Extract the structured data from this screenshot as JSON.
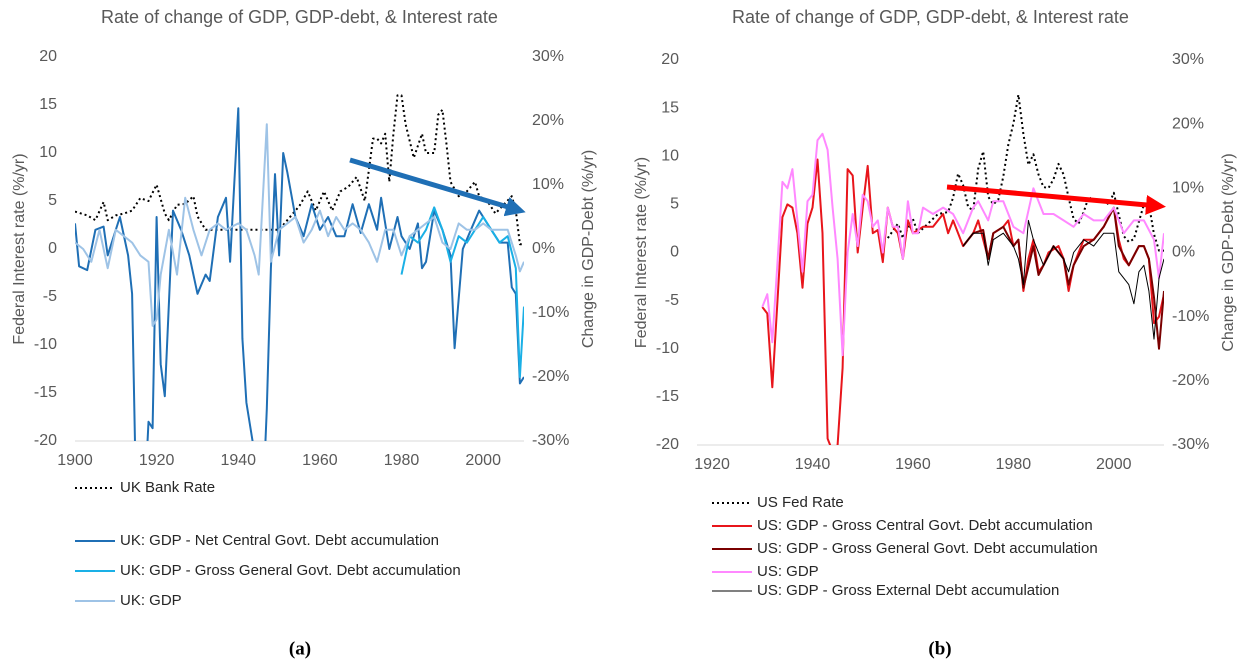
{
  "chart_data": [
    {
      "type": "line",
      "title": "Rate of change of GDP, GDP-debt, & Interest rate",
      "caption": "(a)",
      "y_label": "Federal Interest rate (%/yr)",
      "y2_label": "Change in GDP-Debt (%/yr)",
      "xlim": [
        1900,
        2010
      ],
      "xticks": [
        1900,
        1920,
        1940,
        1960,
        1980,
        2000
      ],
      "ylim": [
        -20,
        20
      ],
      "yticks": [
        20,
        15,
        10,
        5,
        0,
        -5,
        -10,
        -15,
        -20
      ],
      "y2lim": [
        -30,
        30
      ],
      "y2ticks": [
        {
          "value": 30,
          "label": "30%"
        },
        {
          "value": 20,
          "label": "20%"
        },
        {
          "value": 10,
          "label": "10%"
        },
        {
          "value": 0,
          "label": "0%"
        },
        {
          "value": -10,
          "label": "-10%"
        },
        {
          "value": -20,
          "label": "-20%"
        },
        {
          "value": -30,
          "label": "-30%"
        }
      ],
      "arrow_color": "#1f6fb5",
      "series": [
        {
          "name": "UK Bank Rate",
          "color": "#000000",
          "style": "dotted",
          "width": 2,
          "x": [
            1900,
            1903,
            1905,
            1907,
            1908,
            1910,
            1912,
            1914,
            1916,
            1918,
            1920,
            1922,
            1923,
            1925,
            1927,
            1929,
            1930,
            1932,
            1935,
            1939,
            1945,
            1950,
            1952,
            1955,
            1957,
            1959,
            1961,
            1963,
            1965,
            1967,
            1969,
            1971,
            1973,
            1974,
            1975,
            1976,
            1977,
            1978,
            1979,
            1980,
            1981,
            1983,
            1985,
            1986,
            1988,
            1989,
            1990,
            1991,
            1992,
            1994,
            1996,
            1998,
            1999,
            2001,
            2003,
            2005,
            2007,
            2008,
            2009,
            2010
          ],
          "values": [
            3.9,
            3.5,
            3,
            4.9,
            3,
            3.5,
            3.7,
            4,
            5.3,
            5,
            6.7,
            3.7,
            3,
            4.6,
            4.7,
            5.5,
            3.4,
            2,
            2,
            2,
            2,
            2,
            3,
            4.5,
            6,
            4,
            6,
            4,
            6,
            6.5,
            7.5,
            5,
            11.5,
            11.5,
            11,
            12,
            7,
            12,
            16,
            16,
            13,
            9.5,
            12,
            10,
            10,
            14,
            14.5,
            11,
            7,
            5.5,
            6,
            7,
            5.5,
            5,
            3.7,
            4.6,
            5.5,
            4,
            0.5,
            0.5
          ]
        },
        {
          "name": "UK: GDP - Net Central Govt. Debt accumulation",
          "color": "#1f6fb5",
          "style": "solid",
          "width": 2,
          "axis": "y2",
          "x": [
            1900,
            1901,
            1903,
            1905,
            1907,
            1908,
            1910,
            1911,
            1913,
            1914,
            1915,
            1917,
            1918,
            1919,
            1920,
            1921,
            1922,
            1924,
            1926,
            1928,
            1930,
            1932,
            1933,
            1935,
            1937,
            1938,
            1939,
            1940,
            1941,
            1942,
            1944,
            1946,
            1947,
            1948,
            1949,
            1950,
            1951,
            1952,
            1954,
            1956,
            1958,
            1960,
            1962,
            1964,
            1966,
            1968,
            1970,
            1972,
            1974,
            1975,
            1977,
            1979,
            1980,
            1982,
            1984,
            1985,
            1986,
            1988,
            1990,
            1992,
            1993,
            1995,
            1997,
            1999,
            2000,
            2002,
            2004,
            2006,
            2007,
            2008,
            2009,
            2010
          ],
          "values": [
            4,
            -2.7,
            -3.3,
            3,
            3.5,
            -1,
            3,
            5,
            -1,
            -7,
            -40,
            -40,
            -27,
            -28,
            5,
            -18,
            -23,
            6,
            3,
            -1,
            -7,
            -4,
            -5,
            5,
            8,
            -2,
            10,
            22,
            -14,
            -24,
            -32,
            -40,
            -25,
            -3,
            11.7,
            -1,
            15,
            12,
            5,
            2,
            7,
            3,
            5,
            2,
            2,
            7,
            2.5,
            7,
            3,
            8,
            0,
            5,
            2,
            0,
            4,
            -3,
            -2,
            6,
            3,
            -1,
            -15.5,
            0,
            3,
            6,
            5,
            3,
            1,
            1,
            -6,
            -7,
            -21,
            -20
          ]
        },
        {
          "name": "UK: GDP - Gross General Govt. Debt accumulation",
          "color": "#1ab0e6",
          "style": "solid",
          "width": 2,
          "axis": "y2",
          "x": [
            1980,
            1982,
            1984,
            1986,
            1988,
            1990,
            1992,
            1994,
            1996,
            1998,
            2000,
            2002,
            2004,
            2006,
            2008,
            2009,
            2010
          ],
          "values": [
            -4,
            2,
            1,
            3,
            6.5,
            3,
            -2,
            2,
            1,
            3,
            5,
            3,
            1,
            2,
            -3,
            -20,
            -9
          ]
        },
        {
          "name": "UK: GDP",
          "color": "#9ec3e6",
          "style": "solid",
          "width": 2,
          "axis": "y2",
          "x": [
            1900,
            1902,
            1904,
            1906,
            1908,
            1910,
            1912,
            1914,
            1916,
            1918,
            1919,
            1920,
            1921,
            1923,
            1925,
            1927,
            1929,
            1931,
            1933,
            1935,
            1937,
            1940,
            1942,
            1944,
            1945,
            1947,
            1948,
            1950,
            1952,
            1954,
            1956,
            1958,
            1960,
            1962,
            1964,
            1966,
            1968,
            1970,
            1972,
            1974,
            1976,
            1978,
            1980,
            1982,
            1984,
            1986,
            1988,
            1990,
            1992,
            1994,
            1996,
            1998,
            2000,
            2002,
            2004,
            2006,
            2008,
            2009,
            2010
          ],
          "values": [
            1,
            0,
            -2,
            3,
            -3,
            3,
            2,
            1,
            -1,
            -2,
            -12,
            -11,
            -4,
            3,
            -4,
            8,
            3,
            -1,
            3,
            4,
            3,
            4,
            3,
            -1,
            -4,
            19.5,
            -2,
            3,
            4,
            5,
            1,
            3,
            6,
            2,
            5,
            3,
            4,
            3,
            1,
            -2,
            3,
            3,
            -1,
            2,
            3,
            4,
            5,
            1,
            0,
            4,
            3,
            3,
            4,
            3,
            3,
            3,
            -1,
            -3.5,
            -2
          ]
        }
      ]
    },
    {
      "type": "line",
      "title": "Rate of change of GDP, GDP-debt, & Interest rate",
      "caption": "(b)",
      "y_label": "Federal Interest rate (%/yr)",
      "y2_label": "Change in GDP-Debt (%/yr)",
      "xlim": [
        1917,
        2010
      ],
      "xticks": [
        1920,
        1940,
        1960,
        1980,
        2000
      ],
      "ylim": [
        -20,
        20
      ],
      "yticks": [
        20,
        15,
        10,
        5,
        0,
        -5,
        -10,
        -15,
        -20
      ],
      "y2lim": [
        -30,
        30
      ],
      "y2ticks": [
        {
          "value": 30,
          "label": "30%"
        },
        {
          "value": 20,
          "label": "20%"
        },
        {
          "value": 10,
          "label": "10%"
        },
        {
          "value": 0,
          "label": "0%"
        },
        {
          "value": -10,
          "label": "-10%"
        },
        {
          "value": -20,
          "label": "-20%"
        },
        {
          "value": -30,
          "label": "-30%"
        }
      ],
      "arrow_color": "#ff0000",
      "series": [
        {
          "name": "US Fed Rate",
          "color": "#000000",
          "style": "dotted",
          "width": 2,
          "x": [
            1955,
            1957,
            1958,
            1960,
            1961,
            1963,
            1965,
            1967,
            1968,
            1969,
            1970,
            1971,
            1972,
            1973,
            1974,
            1975,
            1976,
            1977,
            1978,
            1979,
            1980,
            1981,
            1982,
            1983,
            1984,
            1985,
            1986,
            1987,
            1988,
            1989,
            1990,
            1991,
            1992,
            1993,
            1994,
            1995,
            1996,
            1997,
            1998,
            1999,
            2000,
            2001,
            2002,
            2003,
            2004,
            2005,
            2006,
            2007,
            2008,
            2009,
            2010
          ],
          "values": [
            1.5,
            3,
            1.5,
            3.5,
            2,
            3,
            4,
            4.2,
            5.7,
            8.2,
            7,
            4.7,
            4.4,
            8.7,
            10.5,
            5.8,
            5,
            5.5,
            7.9,
            11.2,
            13.4,
            16.4,
            12.3,
            9.1,
            10.2,
            8.1,
            6.8,
            6.7,
            7.6,
            9.2,
            8.1,
            5.7,
            3.5,
            3,
            4.2,
            5.8,
            5.3,
            5.5,
            5.4,
            5,
            6.2,
            3.9,
            1.7,
            1.1,
            1.4,
            3.2,
            5,
            5,
            1.9,
            0.2,
            0.2
          ]
        },
        {
          "name": "US: GDP - Gross Central Govt. Debt accumulation",
          "color": "#e8151b",
          "style": "solid",
          "width": 2,
          "axis": "y2",
          "x": [
            1930,
            1931,
            1932,
            1933,
            1934,
            1935,
            1936,
            1937,
            1938,
            1939,
            1940,
            1941,
            1942,
            1943,
            1944,
            1945,
            1946,
            1947,
            1948,
            1949,
            1950,
            1951,
            1952,
            1953,
            1954,
            1955,
            1956,
            1957,
            1958,
            1959,
            1960,
            1962,
            1964,
            1966,
            1967,
            1968,
            1970,
            1972,
            1973,
            1975,
            1976,
            1978,
            1979,
            1980,
            1981,
            1982,
            1983,
            1984,
            1985,
            1986,
            1987,
            1989,
            1990,
            1991,
            1992,
            1994,
            1996,
            1998,
            2000,
            2001,
            2002,
            2003,
            2005,
            2006,
            2007,
            2008,
            2009,
            2010
          ],
          "values": [
            -8.5,
            -9.5,
            -21,
            -8,
            5.5,
            7.5,
            7,
            3,
            -5.5,
            4.5,
            7,
            14.5,
            3,
            -29,
            -31,
            -30,
            -18,
            13,
            12,
            0,
            7,
            13.5,
            3,
            3.5,
            -1.5,
            7,
            4,
            3,
            -1,
            5,
            3,
            4,
            4,
            6,
            3,
            5,
            1,
            3,
            5,
            -1,
            3,
            4,
            5,
            1,
            2,
            -6,
            -1,
            2,
            -3,
            -2,
            0,
            1,
            -1,
            -6,
            -2,
            2,
            2,
            4,
            7,
            2,
            -1,
            -2,
            1,
            1,
            -1,
            -11,
            -10,
            -6.5
          ]
        },
        {
          "name": "US: GDP - Gross General Govt. Debt accumulation",
          "color": "#7a0000",
          "style": "solid",
          "width": 2,
          "axis": "y2",
          "x": [
            1970,
            1972,
            1974,
            1975,
            1976,
            1978,
            1980,
            1981,
            1982,
            1984,
            1985,
            1986,
            1988,
            1990,
            1991,
            1992,
            1994,
            1996,
            1998,
            2000,
            2001,
            2003,
            2005,
            2006,
            2007,
            2008,
            2009,
            2010
          ],
          "values": [
            1,
            3,
            3.5,
            -1,
            3,
            4,
            1,
            2,
            -5.5,
            1,
            -3.5,
            -2,
            1,
            -1,
            -5,
            -2,
            1,
            2,
            4,
            7,
            1,
            -2,
            1,
            1,
            -1,
            -7,
            -15,
            -6
          ]
        },
        {
          "name": "US: GDP",
          "color": "#ff88ff",
          "style": "solid",
          "width": 2,
          "axis": "y2",
          "x": [
            1930,
            1931,
            1932,
            1933,
            1934,
            1935,
            1936,
            1937,
            1938,
            1939,
            1940,
            1941,
            1942,
            1943,
            1944,
            1945,
            1946,
            1947,
            1948,
            1949,
            1950,
            1951,
            1952,
            1953,
            1954,
            1955,
            1956,
            1957,
            1958,
            1959,
            1960,
            1961,
            1962,
            1964,
            1966,
            1968,
            1970,
            1972,
            1973,
            1975,
            1976,
            1978,
            1980,
            1982,
            1984,
            1986,
            1988,
            1990,
            1992,
            1994,
            1996,
            1998,
            2000,
            2002,
            2004,
            2006,
            2008,
            2009,
            2010
          ],
          "values": [
            -8.5,
            -6.5,
            -14,
            -2,
            11,
            10,
            13,
            5,
            -3,
            8,
            9,
            17.5,
            18.5,
            16,
            7,
            -1,
            -16,
            0,
            6,
            1,
            9,
            8,
            4,
            5,
            0,
            7,
            4,
            4,
            -1,
            8,
            3,
            3,
            7,
            6,
            7,
            6,
            3,
            7,
            8,
            5,
            8,
            8,
            4,
            3,
            10,
            6,
            6,
            5,
            4,
            6,
            5,
            5,
            7,
            3,
            5,
            5,
            2,
            -4,
            3
          ]
        },
        {
          "name": "US: GDP - Gross External Debt accumulation",
          "color": "#000000",
          "style": "solid",
          "width": 1,
          "axis": "y2",
          "x": [
            1970,
            1972,
            1974,
            1975,
            1976,
            1978,
            1980,
            1981,
            1982,
            1983,
            1984,
            1986,
            1988,
            1990,
            1991,
            1992,
            1994,
            1996,
            1998,
            2000,
            2001,
            2003,
            2004,
            2005,
            2006,
            2007,
            2008,
            2009,
            2010
          ],
          "values": [
            1,
            3,
            3,
            -2,
            2,
            3,
            1,
            -1,
            -5,
            5,
            2,
            -2,
            1,
            -1,
            -3,
            0,
            2,
            1,
            3,
            3,
            -3,
            -5,
            -8,
            -3,
            -2,
            -6,
            -13.5,
            -4,
            -1
          ]
        }
      ]
    }
  ]
}
